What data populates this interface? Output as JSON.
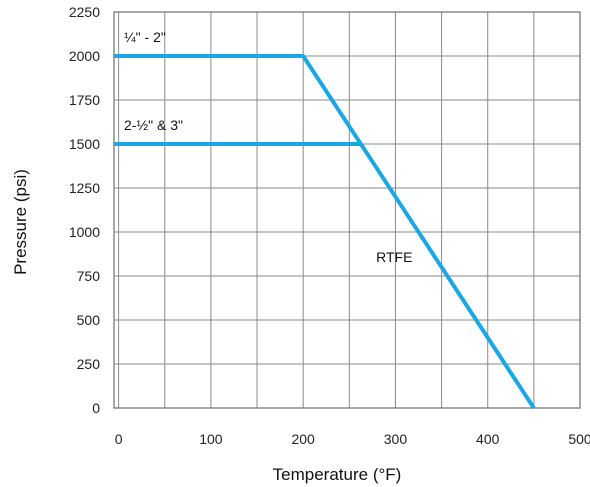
{
  "chart_data": {
    "type": "line",
    "xlabel": "Temperature (°F)",
    "ylabel": "Pressure (psi)",
    "xlim": [
      -5,
      500
    ],
    "ylim": [
      0,
      2250
    ],
    "x_ticks": [
      0,
      100,
      200,
      300,
      400,
      500
    ],
    "y_ticks": [
      0,
      250,
      500,
      750,
      1000,
      1250,
      1500,
      1750,
      2000,
      2250
    ],
    "x_grid_step": 50,
    "grid": true,
    "line_color": "#1aa7e3",
    "series": [
      {
        "name": "¼\" - 2\"",
        "x": [
          -5,
          200,
          450
        ],
        "y": [
          2000,
          2000,
          0
        ]
      },
      {
        "name": "2-½\" & 3\"",
        "x": [
          -5,
          262.5
        ],
        "y": [
          1500,
          1500
        ]
      }
    ],
    "annotations": [
      {
        "text": "RTFE",
        "x": 250,
        "y": 1000
      }
    ]
  }
}
